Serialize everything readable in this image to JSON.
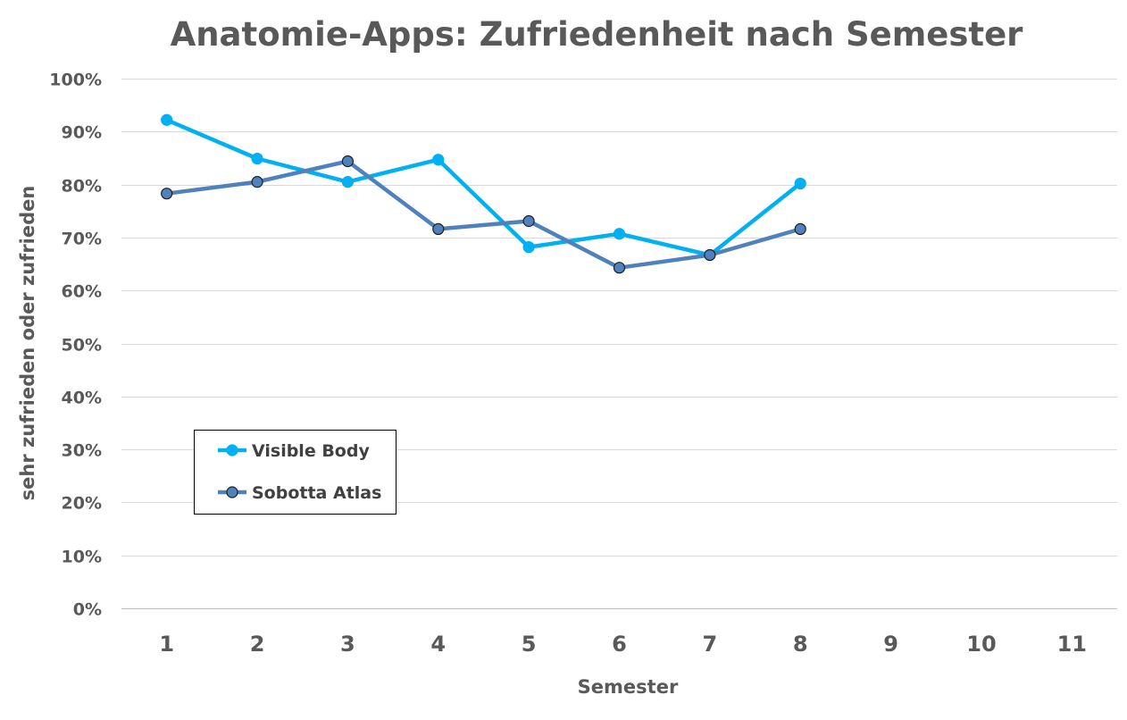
{
  "chart_data": {
    "type": "line",
    "title": "Anatomie-Apps: Zufriedenheit nach Semester",
    "xlabel": "Semester",
    "ylabel": "sehr zufrieden oder zufrieden",
    "categories": [
      "1",
      "2",
      "3",
      "4",
      "5",
      "6",
      "7",
      "8",
      "9",
      "10",
      "11"
    ],
    "ylim": [
      0,
      100
    ],
    "yticks": [
      0,
      10,
      20,
      30,
      40,
      50,
      60,
      70,
      80,
      90,
      100
    ],
    "ytick_labels": [
      "0%",
      "10%",
      "20%",
      "30%",
      "40%",
      "50%",
      "60%",
      "70%",
      "80%",
      "90%",
      "100%"
    ],
    "grid": true,
    "legend_position": "bottom-left",
    "series": [
      {
        "name": "Visible Body",
        "color": "#00B0F0",
        "marker_edge": "#00B0F0",
        "values": [
          92.2,
          84.9,
          80.5,
          84.7,
          68.2,
          70.7,
          66.7,
          80.2,
          null,
          null,
          null
        ]
      },
      {
        "name": "Sobotta Atlas",
        "color": "#4F81BD",
        "marker_edge": "#1F1F1F",
        "values": [
          78.3,
          80.5,
          84.4,
          71.6,
          73.1,
          64.3,
          66.7,
          71.6,
          null,
          null,
          null
        ]
      }
    ]
  }
}
